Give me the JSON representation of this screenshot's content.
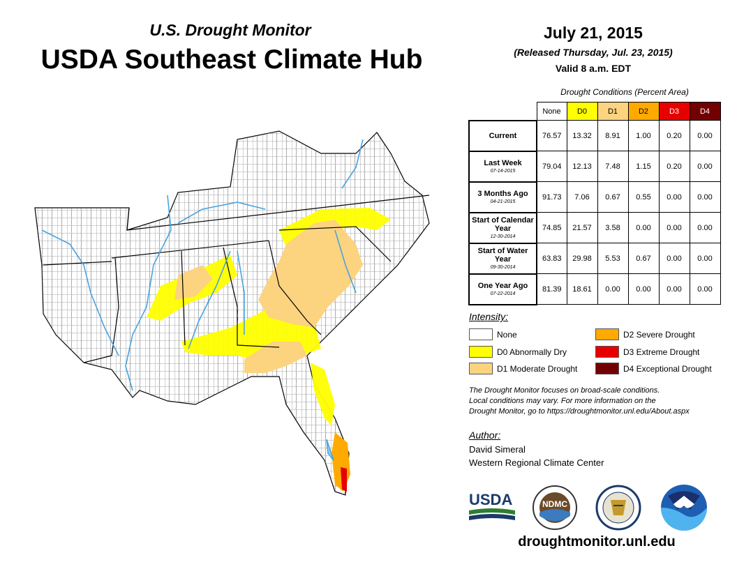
{
  "header": {
    "subtitle": "U.S. Drought Monitor",
    "title": "USDA Southeast Climate Hub",
    "date": "July 21, 2015",
    "released": "(Released Thursday, Jul. 23, 2015)",
    "valid": "Valid 8 a.m. EDT"
  },
  "table": {
    "caption": "Drought Conditions (Percent Area)",
    "columns": [
      "None",
      "D0",
      "D1",
      "D2",
      "D3",
      "D4"
    ],
    "rows": [
      {
        "label": "Current",
        "date": "",
        "values": [
          "76.57",
          "13.32",
          "8.91",
          "1.00",
          "0.20",
          "0.00"
        ]
      },
      {
        "label": "Last Week",
        "date": "07-14-2015",
        "values": [
          "79.04",
          "12.13",
          "7.48",
          "1.15",
          "0.20",
          "0.00"
        ]
      },
      {
        "label": "3 Months Ago",
        "date": "04-21-2015",
        "values": [
          "91.73",
          "7.06",
          "0.67",
          "0.55",
          "0.00",
          "0.00"
        ]
      },
      {
        "label": "Start of Calendar Year",
        "date": "12-30-2014",
        "values": [
          "74.85",
          "21.57",
          "3.58",
          "0.00",
          "0.00",
          "0.00"
        ]
      },
      {
        "label": "Start of Water Year",
        "date": "09-30-2014",
        "values": [
          "63.83",
          "29.98",
          "5.53",
          "0.67",
          "0.00",
          "0.00"
        ]
      },
      {
        "label": "One Year Ago",
        "date": "07-22-2014",
        "values": [
          "81.39",
          "18.61",
          "0.00",
          "0.00",
          "0.00",
          "0.00"
        ]
      }
    ]
  },
  "legend": {
    "title": "Intensity:",
    "items": [
      {
        "label": "None",
        "color": "#ffffff"
      },
      {
        "label": "D0 Abnormally Dry",
        "color": "#ffff00"
      },
      {
        "label": "D1 Moderate Drought",
        "color": "#fcd37f"
      },
      {
        "label": "D2 Severe Drought",
        "color": "#ffaa00"
      },
      {
        "label": "D3 Extreme Drought",
        "color": "#e60000"
      },
      {
        "label": "D4 Exceptional Drought",
        "color": "#730000"
      }
    ]
  },
  "note": {
    "line1": "The Drought Monitor focuses on broad-scale conditions.",
    "line2": "Local conditions may vary. For more information on the",
    "line3": "Drought Monitor, go to https://droughtmonitor.unl.edu/About.aspx"
  },
  "author": {
    "title": "Author:",
    "name": "David Simeral",
    "org": "Western Regional Climate Center"
  },
  "logos": {
    "usda": "USDA",
    "ndmc": "NDMC",
    "noaa": "NOAA"
  },
  "website": "droughtmonitor.unl.edu",
  "colors": {
    "column_headers": [
      "#ffffff",
      "#ffff00",
      "#fcd37f",
      "#ffaa00",
      "#e60000",
      "#730000"
    ],
    "river": "#4aa3df"
  }
}
